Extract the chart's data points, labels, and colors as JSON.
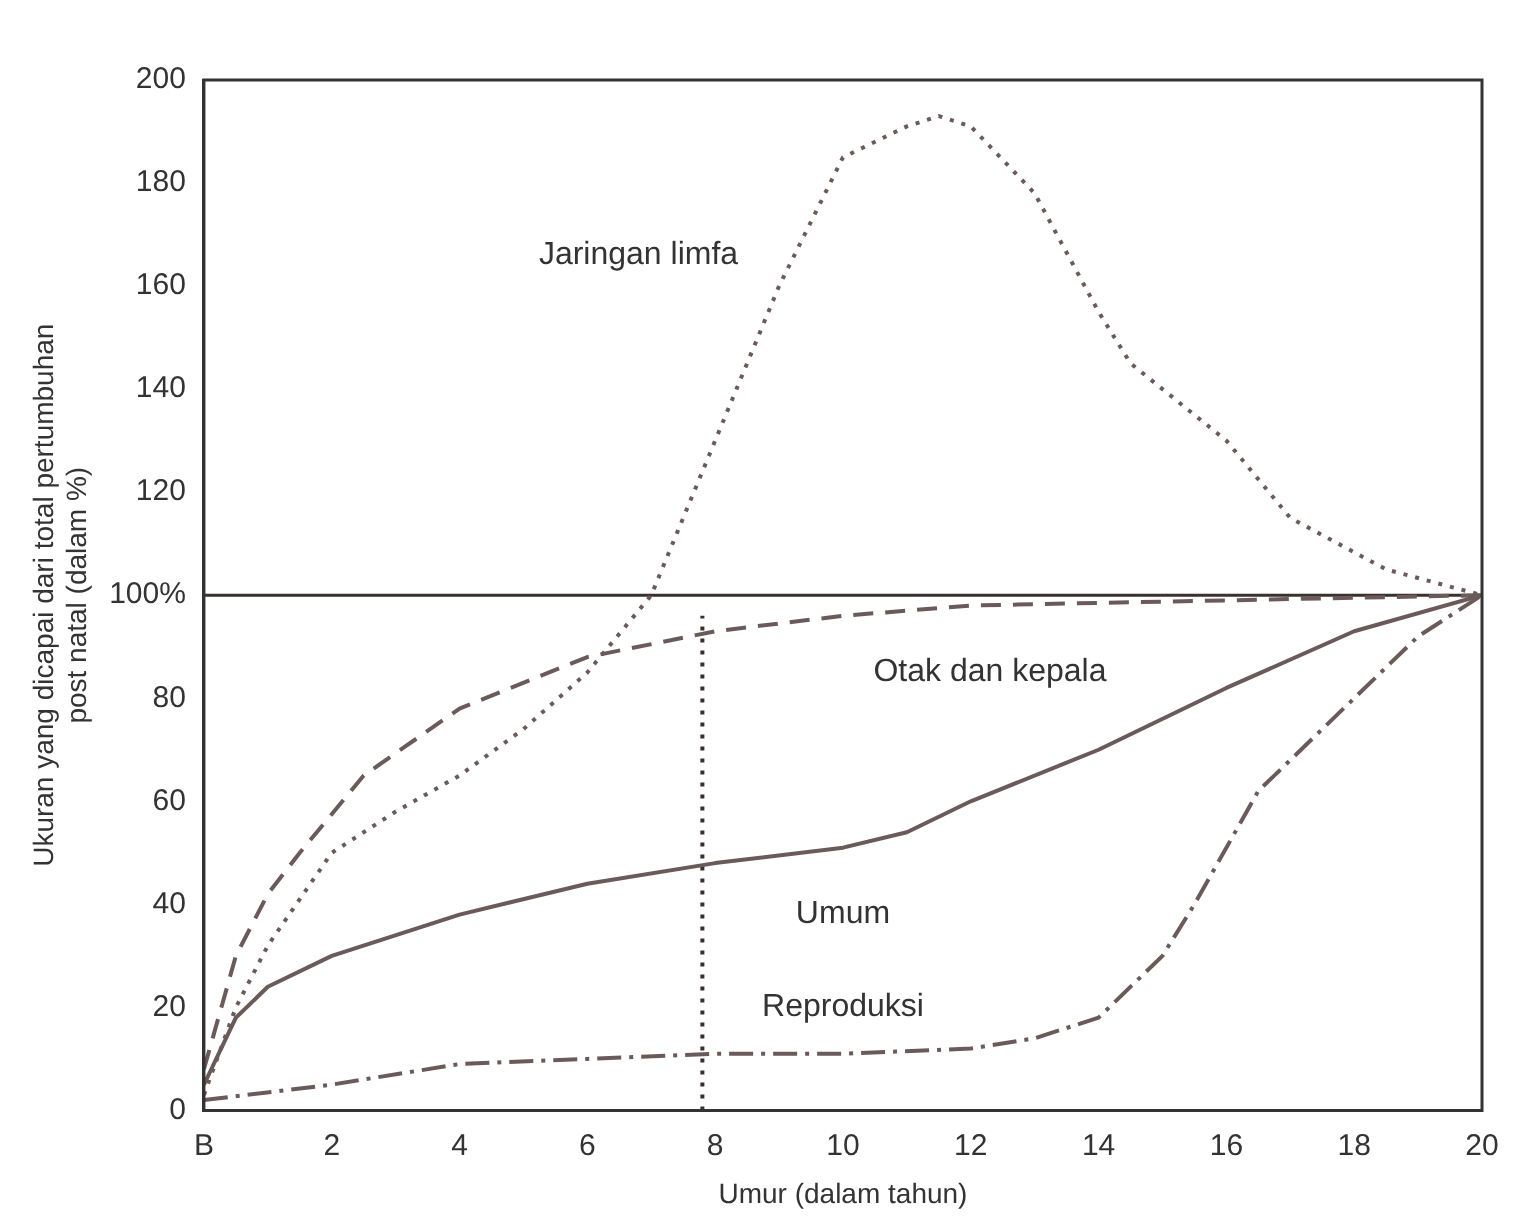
{
  "chart_data": {
    "type": "line",
    "xlabel": "Umur (dalam tahun)",
    "ylabel": "Ukuran yang dicapai dari total pertumbuhan\npost natal (dalam %)",
    "xlim": [
      0,
      20
    ],
    "ylim": [
      0,
      200
    ],
    "xticks": [
      {
        "value": 0,
        "label": "B"
      },
      2,
      4,
      6,
      8,
      10,
      12,
      14,
      16,
      18,
      20
    ],
    "yticks": [
      0,
      20,
      40,
      60,
      80,
      {
        "value": 100,
        "label": "100%"
      },
      120,
      140,
      160,
      180,
      200
    ],
    "grid": false,
    "legend": false,
    "marker": "none",
    "series": [
      {
        "name": "Jaringan limfa",
        "color": "#6b5a5a",
        "line_style": "dotted",
        "x": [
          0,
          0.5,
          1,
          2,
          3,
          4,
          5,
          6,
          7,
          8,
          9,
          10,
          11,
          11.5,
          12,
          13,
          14,
          14.5,
          16,
          17,
          18.5,
          20
        ],
        "values": [
          3,
          20,
          32,
          50,
          58,
          65,
          74,
          85,
          100,
          130,
          160,
          185,
          191,
          193,
          191,
          178,
          155,
          145,
          130,
          115,
          105,
          100
        ]
      },
      {
        "name": "Otak dan kepala",
        "color": "#6b5a5a",
        "line_style": "dashed",
        "x": [
          0,
          0.5,
          1,
          1.5,
          2.5,
          4,
          6,
          8,
          10,
          12,
          16,
          20
        ],
        "values": [
          8,
          30,
          42,
          50,
          65,
          78,
          88,
          93,
          96,
          98,
          99,
          100
        ]
      },
      {
        "name": "Umum",
        "color": "#6b5a5a",
        "line_style": "solid",
        "x": [
          0,
          0.5,
          1,
          2,
          4,
          6,
          8,
          10,
          11,
          12,
          14,
          16,
          18,
          20
        ],
        "values": [
          5,
          18,
          24,
          30,
          38,
          44,
          48,
          51,
          54,
          60,
          70,
          82,
          93,
          100
        ]
      },
      {
        "name": "Reproduksi",
        "color": "#6b5a5a",
        "line_style": "dashdot",
        "x": [
          0,
          2,
          4,
          6,
          8,
          10,
          12,
          13,
          14,
          15,
          15.5,
          16.5,
          18,
          19,
          20
        ],
        "values": [
          2,
          5,
          9,
          10,
          11,
          11,
          12,
          14,
          18,
          30,
          40,
          62,
          80,
          92,
          100
        ]
      },
      {
        "color": "#3a3030",
        "line_style": "dotted",
        "x": [
          7.8,
          7.8
        ],
        "values": [
          0,
          96
        ]
      }
    ],
    "ref_lines": [
      {
        "axis": "y",
        "value": 100,
        "color": "#3a3030",
        "line_style": "solid"
      }
    ]
  }
}
